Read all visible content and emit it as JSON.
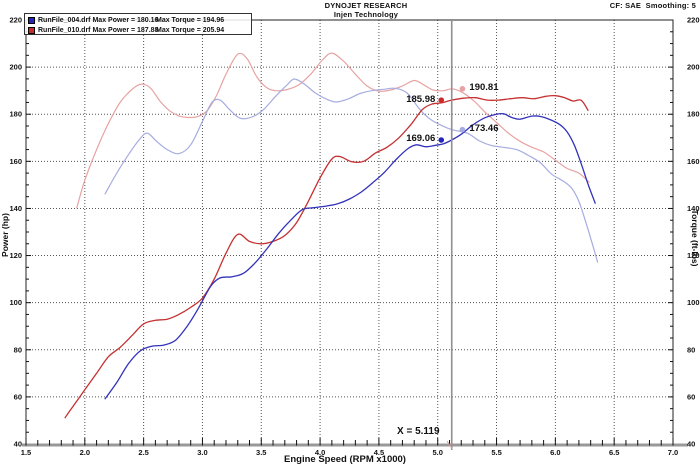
{
  "header": {
    "title": "DYNOJET RESEARCH",
    "subtitle": "Injen Technology",
    "config": "CF: SAE  Smoothing: 5"
  },
  "legend": {
    "entries": [
      {
        "file": "RunFile_004.drf",
        "max_power": "Max Power = 180.16",
        "max_torque": "Max Torque = 194.96",
        "color": "#2626bd"
      },
      {
        "file": "RunFile_010.drf",
        "max_power": "Max Power = 187.88",
        "max_torque": "Max Torque = 205.94",
        "color": "#cc2a2a"
      }
    ]
  },
  "cursor": {
    "label": "X = 5.119",
    "rpm": 5.119
  },
  "annotations": [
    {
      "text": "185.98",
      "rpm": 5.03,
      "value": 185.98,
      "side": "left",
      "color": "#cc2a2a"
    },
    {
      "text": "190.81",
      "rpm": 5.21,
      "value": 190.81,
      "side": "right",
      "color": "#e7a3a3"
    },
    {
      "text": "169.06",
      "rpm": 5.03,
      "value": 169.06,
      "side": "left",
      "color": "#2626bd"
    },
    {
      "text": "173.46",
      "rpm": 5.21,
      "value": 173.46,
      "side": "right",
      "color": "#a6ace0"
    }
  ],
  "chart_data": {
    "type": "line",
    "title": "DYNOJET RESEARCH",
    "subtitle": "Injen Technology",
    "xlabel": "Engine Speed (RPM x1000)",
    "ylabel_left": "Power (hp)",
    "ylabel_right": "Torque (ft-lbs)",
    "xlim": [
      1.5,
      7.0
    ],
    "ylim": [
      40,
      220
    ],
    "xticks": [
      "1.5",
      "2.0",
      "2.5",
      "3.0",
      "3.5",
      "4.0",
      "4.5",
      "5.0",
      "5.5",
      "6.0",
      "6.5",
      "7.0"
    ],
    "yticks": [
      "220",
      "200",
      "180",
      "160",
      "140",
      "120",
      "100",
      "80",
      "60",
      "40"
    ],
    "grid": true,
    "legend_position": "top-left",
    "cursor_x": 5.119,
    "series": [
      {
        "name": "torque_010",
        "label": "RunFile_010.drf Torque",
        "axis": "right",
        "color": "#e7a3a3",
        "width": 1.2,
        "points": [
          [
            1.93,
            140
          ],
          [
            2.0,
            152
          ],
          [
            2.1,
            165
          ],
          [
            2.2,
            176
          ],
          [
            2.3,
            185
          ],
          [
            2.4,
            190.5
          ],
          [
            2.48,
            192.8
          ],
          [
            2.56,
            191
          ],
          [
            2.64,
            185.5
          ],
          [
            2.72,
            181.5
          ],
          [
            2.8,
            179.3
          ],
          [
            2.88,
            178.6
          ],
          [
            2.96,
            179
          ],
          [
            3.04,
            181.5
          ],
          [
            3.12,
            188
          ],
          [
            3.2,
            197
          ],
          [
            3.3,
            205.5
          ],
          [
            3.38,
            203.5
          ],
          [
            3.46,
            196
          ],
          [
            3.54,
            191.5
          ],
          [
            3.62,
            190
          ],
          [
            3.72,
            190.5
          ],
          [
            3.82,
            192.5
          ],
          [
            3.92,
            197
          ],
          [
            4.02,
            203
          ],
          [
            4.1,
            205.94
          ],
          [
            4.2,
            202.5
          ],
          [
            4.3,
            197
          ],
          [
            4.4,
            192
          ],
          [
            4.5,
            189.8
          ],
          [
            4.6,
            190.3
          ],
          [
            4.7,
            192
          ],
          [
            4.8,
            194.3
          ],
          [
            4.88,
            192.5
          ],
          [
            4.96,
            190.3
          ],
          [
            5.05,
            190
          ],
          [
            5.119,
            190.81
          ],
          [
            5.2,
            189.5
          ],
          [
            5.3,
            186
          ],
          [
            5.4,
            181
          ],
          [
            5.5,
            176.5
          ],
          [
            5.6,
            172
          ],
          [
            5.7,
            168.5
          ],
          [
            5.8,
            166
          ],
          [
            5.9,
            164
          ],
          [
            6.0,
            160.5
          ],
          [
            6.1,
            157
          ],
          [
            6.2,
            155
          ],
          [
            6.29,
            151
          ]
        ]
      },
      {
        "name": "torque_004",
        "label": "RunFile_004.drf Torque",
        "axis": "right",
        "color": "#a6ace0",
        "width": 1.2,
        "points": [
          [
            2.17,
            146
          ],
          [
            2.26,
            154
          ],
          [
            2.36,
            162
          ],
          [
            2.46,
            169
          ],
          [
            2.53,
            172
          ],
          [
            2.61,
            168.5
          ],
          [
            2.7,
            165
          ],
          [
            2.8,
            163.3
          ],
          [
            2.9,
            167
          ],
          [
            3.0,
            177
          ],
          [
            3.08,
            185
          ],
          [
            3.15,
            186
          ],
          [
            3.23,
            182
          ],
          [
            3.32,
            178.3
          ],
          [
            3.42,
            178.8
          ],
          [
            3.52,
            182
          ],
          [
            3.62,
            187.5
          ],
          [
            3.72,
            192.5
          ],
          [
            3.78,
            194.96
          ],
          [
            3.86,
            193
          ],
          [
            3.96,
            189
          ],
          [
            4.06,
            186.3
          ],
          [
            4.14,
            185.2
          ],
          [
            4.24,
            186.5
          ],
          [
            4.34,
            188.8
          ],
          [
            4.44,
            190
          ],
          [
            4.54,
            190.6
          ],
          [
            4.64,
            191
          ],
          [
            4.74,
            189
          ],
          [
            4.84,
            182.5
          ],
          [
            4.92,
            178.5
          ],
          [
            5.0,
            176
          ],
          [
            5.119,
            173.46
          ],
          [
            5.25,
            172
          ],
          [
            5.35,
            168.8
          ],
          [
            5.45,
            166.8
          ],
          [
            5.55,
            166
          ],
          [
            5.67,
            165
          ],
          [
            5.77,
            162.5
          ],
          [
            5.87,
            159.5
          ],
          [
            5.97,
            154.5
          ],
          [
            6.07,
            151.5
          ],
          [
            6.14,
            148.5
          ],
          [
            6.2,
            143
          ],
          [
            6.26,
            134
          ],
          [
            6.32,
            124
          ],
          [
            6.36,
            117
          ]
        ]
      },
      {
        "name": "power_010",
        "label": "RunFile_010.drf Power",
        "axis": "left",
        "color": "#c53030",
        "width": 1.3,
        "points": [
          [
            1.83,
            51
          ],
          [
            1.9,
            56
          ],
          [
            2.0,
            63
          ],
          [
            2.1,
            70
          ],
          [
            2.2,
            77
          ],
          [
            2.3,
            81
          ],
          [
            2.4,
            86
          ],
          [
            2.5,
            91
          ],
          [
            2.6,
            92.5
          ],
          [
            2.7,
            93
          ],
          [
            2.8,
            95
          ],
          [
            2.9,
            98
          ],
          [
            3.0,
            102
          ],
          [
            3.1,
            110
          ],
          [
            3.2,
            121
          ],
          [
            3.3,
            129
          ],
          [
            3.4,
            126
          ],
          [
            3.5,
            125
          ],
          [
            3.6,
            126
          ],
          [
            3.7,
            128.5
          ],
          [
            3.8,
            134
          ],
          [
            3.9,
            143
          ],
          [
            4.0,
            153
          ],
          [
            4.1,
            161
          ],
          [
            4.17,
            162
          ],
          [
            4.27,
            159.8
          ],
          [
            4.37,
            160
          ],
          [
            4.47,
            163.5
          ],
          [
            4.57,
            166
          ],
          [
            4.67,
            170
          ],
          [
            4.77,
            175.5
          ],
          [
            4.87,
            182
          ],
          [
            4.95,
            184.3
          ],
          [
            5.03,
            184.8
          ],
          [
            5.119,
            185.98
          ],
          [
            5.22,
            186.8
          ],
          [
            5.32,
            187
          ],
          [
            5.42,
            186
          ],
          [
            5.52,
            186
          ],
          [
            5.62,
            186.6
          ],
          [
            5.72,
            187
          ],
          [
            5.82,
            186.6
          ],
          [
            5.92,
            187.6
          ],
          [
            6.0,
            187.88
          ],
          [
            6.08,
            187
          ],
          [
            6.15,
            185.6
          ],
          [
            6.22,
            185.9
          ],
          [
            6.28,
            181.5
          ]
        ]
      },
      {
        "name": "power_004",
        "label": "RunFile_004.drf Power",
        "axis": "left",
        "color": "#3333bb",
        "width": 1.3,
        "points": [
          [
            2.17,
            59
          ],
          [
            2.27,
            66
          ],
          [
            2.37,
            74
          ],
          [
            2.47,
            79.5
          ],
          [
            2.57,
            81.5
          ],
          [
            2.67,
            82
          ],
          [
            2.77,
            84
          ],
          [
            2.87,
            90
          ],
          [
            2.97,
            98
          ],
          [
            3.07,
            107
          ],
          [
            3.15,
            110.5
          ],
          [
            3.25,
            111
          ],
          [
            3.35,
            112.5
          ],
          [
            3.45,
            117
          ],
          [
            3.55,
            123
          ],
          [
            3.65,
            129.5
          ],
          [
            3.75,
            135
          ],
          [
            3.85,
            139.5
          ],
          [
            3.95,
            140.3
          ],
          [
            4.05,
            141
          ],
          [
            4.15,
            142
          ],
          [
            4.25,
            144
          ],
          [
            4.35,
            147
          ],
          [
            4.45,
            151
          ],
          [
            4.55,
            155.5
          ],
          [
            4.65,
            161
          ],
          [
            4.75,
            165.5
          ],
          [
            4.82,
            167
          ],
          [
            4.9,
            166.2
          ],
          [
            4.98,
            166.8
          ],
          [
            5.05,
            167.5
          ],
          [
            5.119,
            169.06
          ],
          [
            5.2,
            171.5
          ],
          [
            5.3,
            175.5
          ],
          [
            5.4,
            178.5
          ],
          [
            5.5,
            180
          ],
          [
            5.56,
            180.16
          ],
          [
            5.63,
            178.6
          ],
          [
            5.7,
            177.9
          ],
          [
            5.8,
            179.2
          ],
          [
            5.88,
            179
          ],
          [
            5.96,
            177.6
          ],
          [
            6.04,
            175.5
          ],
          [
            6.1,
            172.5
          ],
          [
            6.16,
            167
          ],
          [
            6.22,
            159
          ],
          [
            6.28,
            150
          ],
          [
            6.34,
            142
          ]
        ]
      }
    ]
  }
}
